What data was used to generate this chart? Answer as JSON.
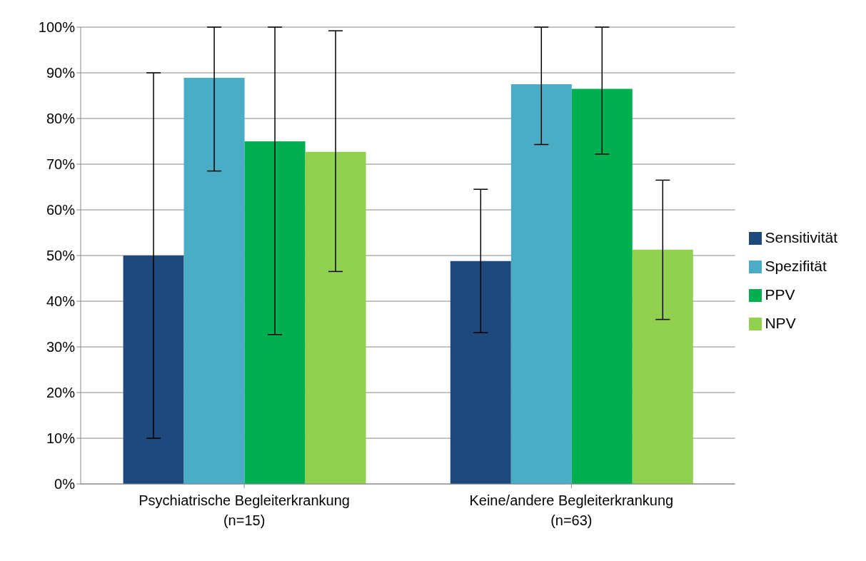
{
  "chart_data": {
    "type": "bar",
    "categories": [
      "Psychiatrische Begleiterkrankung\n(n=15)",
      "Keine/andere Begleiterkrankung\n(n=63)"
    ],
    "series": [
      {
        "name": "Sensitivität",
        "color": "#1f497d",
        "values": [
          50,
          48.8
        ],
        "errors": [
          [
            10,
            90
          ],
          [
            33.1,
            64.5
          ]
        ]
      },
      {
        "name": "Spezifität",
        "color": "#4bacc6",
        "values": [
          88.9,
          87.5
        ],
        "errors": [
          [
            68.5,
            100
          ],
          [
            74.3,
            100
          ]
        ]
      },
      {
        "name": "PPV",
        "color": "#00b050",
        "values": [
          75,
          86.5
        ],
        "errors": [
          [
            32.7,
            100
          ],
          [
            72.2,
            100
          ]
        ]
      },
      {
        "name": "NPV",
        "color": "#92d050",
        "values": [
          72.7,
          51.3
        ],
        "errors": [
          [
            46.5,
            99.2
          ],
          [
            36,
            66.5
          ]
        ]
      }
    ],
    "ylim": [
      0,
      100
    ],
    "yticks": [
      {
        "value": 0,
        "label": "0%"
      },
      {
        "value": 10,
        "label": "10%"
      },
      {
        "value": 20,
        "label": "20%"
      },
      {
        "value": 30,
        "label": "30%"
      },
      {
        "value": 40,
        "label": "40%"
      },
      {
        "value": 50,
        "label": "50%"
      },
      {
        "value": 60,
        "label": "60%"
      },
      {
        "value": 70,
        "label": "70%"
      },
      {
        "value": 80,
        "label": "80%"
      },
      {
        "value": 90,
        "label": "90%"
      },
      {
        "value": 100,
        "label": "100%"
      }
    ],
    "grid": "y",
    "legend": "right"
  }
}
